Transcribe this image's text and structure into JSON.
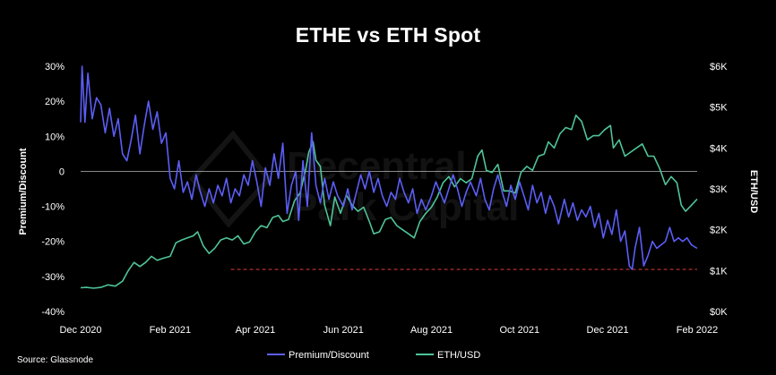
{
  "title": "ETHE vs ETH Spot",
  "source": "Source: Glassnode",
  "watermark": [
    "Decentral",
    "Park Capital"
  ],
  "colors": {
    "premium": "#5b5ef5",
    "eth": "#4fc497",
    "reference_line": "#e03a3a",
    "zero_line": "#ffffff",
    "background": "#000000"
  },
  "chart_data": {
    "type": "line",
    "title": "ETHE vs ETH Spot",
    "ylabel_left": "Premium/Discount",
    "ylabel_right": "ETH/USD",
    "x_ticks": [
      "Dec 2020",
      "Feb 2021",
      "Apr 2021",
      "Jun 2021",
      "Aug 2021",
      "Oct 2021",
      "Dec 2021",
      "Feb 2022"
    ],
    "xlim": [
      "2020-12-01",
      "2022-02-01"
    ],
    "ylim_left": [
      -40,
      30
    ],
    "ylim_right": [
      0,
      6000
    ],
    "y_ticks_left": [
      "30%",
      "20%",
      "10%",
      "0",
      "-10%",
      "-20%",
      "-30%",
      "-40%"
    ],
    "y_ticks_right": [
      "$6K",
      "$5K",
      "$4K",
      "$3K",
      "$2K",
      "$1K",
      "$0K"
    ],
    "reference_line": {
      "y_left": -28,
      "x_start": "2021-03-15",
      "x_end": "2022-02-01",
      "style": "dashed"
    },
    "legend": {
      "placement": "bottom-center",
      "entries": [
        "Premium/Discount",
        "ETH/USD"
      ]
    },
    "series": [
      {
        "name": "Premium/Discount",
        "axis": "left",
        "points": [
          [
            "2020-12-01",
            14
          ],
          [
            "2020-12-02",
            30
          ],
          [
            "2020-12-04",
            14
          ],
          [
            "2020-12-06",
            28
          ],
          [
            "2020-12-09",
            15
          ],
          [
            "2020-12-12",
            21
          ],
          [
            "2020-12-15",
            19
          ],
          [
            "2020-12-18",
            11
          ],
          [
            "2020-12-21",
            18
          ],
          [
            "2020-12-24",
            10
          ],
          [
            "2020-12-27",
            15
          ],
          [
            "2020-12-30",
            5
          ],
          [
            "2021-01-02",
            3
          ],
          [
            "2021-01-05",
            9
          ],
          [
            "2021-01-08",
            16
          ],
          [
            "2021-01-11",
            5
          ],
          [
            "2021-01-14",
            13
          ],
          [
            "2021-01-17",
            20
          ],
          [
            "2021-01-20",
            12
          ],
          [
            "2021-01-23",
            17
          ],
          [
            "2021-01-26",
            8
          ],
          [
            "2021-01-29",
            11
          ],
          [
            "2021-02-01",
            -2
          ],
          [
            "2021-02-04",
            -5
          ],
          [
            "2021-02-07",
            3
          ],
          [
            "2021-02-10",
            -6
          ],
          [
            "2021-02-13",
            -3
          ],
          [
            "2021-02-16",
            -8
          ],
          [
            "2021-02-19",
            -1
          ],
          [
            "2021-02-22",
            -6
          ],
          [
            "2021-02-25",
            -10
          ],
          [
            "2021-02-28",
            -5
          ],
          [
            "2021-03-03",
            -9
          ],
          [
            "2021-03-06",
            -4
          ],
          [
            "2021-03-09",
            -7
          ],
          [
            "2021-03-12",
            -2
          ],
          [
            "2021-03-15",
            -9
          ],
          [
            "2021-03-18",
            -5
          ],
          [
            "2021-03-21",
            -7
          ],
          [
            "2021-03-24",
            -1
          ],
          [
            "2021-03-27",
            -4
          ],
          [
            "2021-03-30",
            3
          ],
          [
            "2021-04-02",
            -3
          ],
          [
            "2021-04-05",
            -10
          ],
          [
            "2021-04-08",
            1
          ],
          [
            "2021-04-11",
            -4
          ],
          [
            "2021-04-14",
            5
          ],
          [
            "2021-04-17",
            -2
          ],
          [
            "2021-04-20",
            8
          ],
          [
            "2021-04-23",
            -12
          ],
          [
            "2021-04-26",
            -4
          ],
          [
            "2021-04-29",
            0
          ],
          [
            "2021-05-01",
            -14
          ],
          [
            "2021-05-04",
            3
          ],
          [
            "2021-05-07",
            -10
          ],
          [
            "2021-05-10",
            11
          ],
          [
            "2021-05-13",
            -4
          ],
          [
            "2021-05-16",
            -9
          ],
          [
            "2021-05-19",
            -2
          ],
          [
            "2021-05-22",
            -8
          ],
          [
            "2021-05-25",
            -3
          ],
          [
            "2021-05-28",
            -7
          ],
          [
            "2021-06-01",
            -10
          ],
          [
            "2021-06-04",
            -5
          ],
          [
            "2021-06-07",
            -11
          ],
          [
            "2021-06-10",
            -6
          ],
          [
            "2021-06-13",
            -1
          ],
          [
            "2021-06-16",
            -5
          ],
          [
            "2021-06-19",
            0
          ],
          [
            "2021-06-22",
            -6
          ],
          [
            "2021-06-25",
            -2
          ],
          [
            "2021-06-28",
            -7
          ],
          [
            "2021-07-01",
            -10
          ],
          [
            "2021-07-04",
            -6
          ],
          [
            "2021-07-07",
            -8
          ],
          [
            "2021-07-10",
            -2
          ],
          [
            "2021-07-13",
            -6
          ],
          [
            "2021-07-16",
            -9
          ],
          [
            "2021-07-19",
            -5
          ],
          [
            "2021-07-22",
            -12
          ],
          [
            "2021-07-25",
            -8
          ],
          [
            "2021-07-28",
            -11
          ],
          [
            "2021-08-01",
            -7
          ],
          [
            "2021-08-04",
            -3
          ],
          [
            "2021-08-07",
            -6
          ],
          [
            "2021-08-10",
            -9
          ],
          [
            "2021-08-13",
            -5
          ],
          [
            "2021-08-16",
            -1
          ],
          [
            "2021-08-19",
            -5
          ],
          [
            "2021-08-22",
            -10
          ],
          [
            "2021-08-25",
            -6
          ],
          [
            "2021-08-28",
            -3
          ],
          [
            "2021-09-01",
            -7
          ],
          [
            "2021-09-04",
            -2
          ],
          [
            "2021-09-07",
            -8
          ],
          [
            "2021-09-10",
            -11
          ],
          [
            "2021-09-13",
            -5
          ],
          [
            "2021-09-16",
            -1
          ],
          [
            "2021-09-19",
            -6
          ],
          [
            "2021-09-22",
            -10
          ],
          [
            "2021-09-25",
            -4
          ],
          [
            "2021-09-28",
            -8
          ],
          [
            "2021-10-01",
            -3
          ],
          [
            "2021-10-04",
            -7
          ],
          [
            "2021-10-07",
            -11
          ],
          [
            "2021-10-10",
            -4
          ],
          [
            "2021-10-13",
            -9
          ],
          [
            "2021-10-16",
            -6
          ],
          [
            "2021-10-19",
            -12
          ],
          [
            "2021-10-22",
            -7
          ],
          [
            "2021-10-25",
            -10
          ],
          [
            "2021-10-28",
            -15
          ],
          [
            "2021-11-01",
            -8
          ],
          [
            "2021-11-04",
            -13
          ],
          [
            "2021-11-07",
            -9
          ],
          [
            "2021-11-10",
            -14
          ],
          [
            "2021-11-13",
            -11
          ],
          [
            "2021-11-16",
            -13
          ],
          [
            "2021-11-19",
            -10
          ],
          [
            "2021-11-22",
            -16
          ],
          [
            "2021-11-25",
            -12
          ],
          [
            "2021-11-28",
            -19
          ],
          [
            "2021-12-01",
            -14
          ],
          [
            "2021-12-04",
            -18
          ],
          [
            "2021-12-07",
            -11
          ],
          [
            "2021-12-10",
            -20
          ],
          [
            "2021-12-13",
            -17
          ],
          [
            "2021-12-16",
            -27
          ],
          [
            "2021-12-18",
            -28
          ],
          [
            "2021-12-20",
            -22
          ],
          [
            "2021-12-23",
            -16
          ],
          [
            "2021-12-26",
            -27
          ],
          [
            "2021-12-29",
            -24
          ],
          [
            "2022-01-01",
            -20
          ],
          [
            "2022-01-04",
            -22
          ],
          [
            "2022-01-07",
            -21
          ],
          [
            "2022-01-10",
            -20
          ],
          [
            "2022-01-13",
            -16
          ],
          [
            "2022-01-16",
            -20
          ],
          [
            "2022-01-19",
            -19
          ],
          [
            "2022-01-22",
            -20
          ],
          [
            "2022-01-25",
            -19
          ],
          [
            "2022-01-28",
            -21
          ],
          [
            "2022-02-01",
            -22
          ]
        ]
      },
      {
        "name": "ETH/USD",
        "axis": "right",
        "points": [
          [
            "2020-12-01",
            580
          ],
          [
            "2020-12-05",
            590
          ],
          [
            "2020-12-10",
            570
          ],
          [
            "2020-12-15",
            590
          ],
          [
            "2020-12-20",
            650
          ],
          [
            "2020-12-25",
            620
          ],
          [
            "2020-12-30",
            740
          ],
          [
            "2021-01-03",
            1000
          ],
          [
            "2021-01-07",
            1200
          ],
          [
            "2021-01-11",
            1100
          ],
          [
            "2021-01-15",
            1200
          ],
          [
            "2021-01-19",
            1350
          ],
          [
            "2021-01-23",
            1250
          ],
          [
            "2021-01-27",
            1300
          ],
          [
            "2021-02-01",
            1350
          ],
          [
            "2021-02-05",
            1680
          ],
          [
            "2021-02-09",
            1750
          ],
          [
            "2021-02-13",
            1800
          ],
          [
            "2021-02-17",
            1850
          ],
          [
            "2021-02-20",
            1950
          ],
          [
            "2021-02-24",
            1600
          ],
          [
            "2021-02-28",
            1420
          ],
          [
            "2021-03-04",
            1550
          ],
          [
            "2021-03-08",
            1750
          ],
          [
            "2021-03-12",
            1800
          ],
          [
            "2021-03-16",
            1750
          ],
          [
            "2021-03-20",
            1850
          ],
          [
            "2021-03-24",
            1650
          ],
          [
            "2021-03-28",
            1700
          ],
          [
            "2021-04-01",
            1950
          ],
          [
            "2021-04-05",
            2100
          ],
          [
            "2021-04-09",
            2050
          ],
          [
            "2021-04-13",
            2300
          ],
          [
            "2021-04-17",
            2350
          ],
          [
            "2021-04-20",
            2200
          ],
          [
            "2021-04-24",
            2250
          ],
          [
            "2021-04-28",
            2700
          ],
          [
            "2021-05-02",
            2900
          ],
          [
            "2021-05-06",
            3500
          ],
          [
            "2021-05-08",
            3900
          ],
          [
            "2021-05-11",
            4150
          ],
          [
            "2021-05-13",
            3700
          ],
          [
            "2021-05-16",
            3550
          ],
          [
            "2021-05-19",
            2600
          ],
          [
            "2021-05-23",
            2100
          ],
          [
            "2021-05-26",
            2800
          ],
          [
            "2021-05-30",
            2400
          ],
          [
            "2021-06-03",
            2850
          ],
          [
            "2021-06-07",
            2600
          ],
          [
            "2021-06-11",
            2450
          ],
          [
            "2021-06-15",
            2550
          ],
          [
            "2021-06-19",
            2200
          ],
          [
            "2021-06-22",
            1900
          ],
          [
            "2021-06-26",
            1950
          ],
          [
            "2021-06-30",
            2250
          ],
          [
            "2021-07-04",
            2300
          ],
          [
            "2021-07-08",
            2100
          ],
          [
            "2021-07-12",
            2000
          ],
          [
            "2021-07-16",
            1900
          ],
          [
            "2021-07-20",
            1800
          ],
          [
            "2021-07-24",
            2200
          ],
          [
            "2021-07-28",
            2400
          ],
          [
            "2021-08-01",
            2550
          ],
          [
            "2021-08-05",
            2800
          ],
          [
            "2021-08-09",
            3150
          ],
          [
            "2021-08-13",
            3300
          ],
          [
            "2021-08-17",
            3050
          ],
          [
            "2021-08-21",
            3250
          ],
          [
            "2021-08-25",
            3150
          ],
          [
            "2021-08-29",
            3250
          ],
          [
            "2021-09-02",
            3800
          ],
          [
            "2021-09-05",
            3950
          ],
          [
            "2021-09-08",
            3450
          ],
          [
            "2021-09-12",
            3400
          ],
          [
            "2021-09-16",
            3600
          ],
          [
            "2021-09-20",
            2950
          ],
          [
            "2021-09-24",
            2950
          ],
          [
            "2021-09-28",
            2900
          ],
          [
            "2021-10-02",
            3400
          ],
          [
            "2021-10-06",
            3550
          ],
          [
            "2021-10-10",
            3450
          ],
          [
            "2021-10-14",
            3800
          ],
          [
            "2021-10-18",
            3850
          ],
          [
            "2021-10-21",
            4150
          ],
          [
            "2021-10-25",
            4000
          ],
          [
            "2021-10-29",
            4350
          ],
          [
            "2021-11-02",
            4500
          ],
          [
            "2021-11-06",
            4450
          ],
          [
            "2021-11-09",
            4800
          ],
          [
            "2021-11-13",
            4650
          ],
          [
            "2021-11-17",
            4200
          ],
          [
            "2021-11-21",
            4300
          ],
          [
            "2021-11-25",
            4300
          ],
          [
            "2021-11-29",
            4450
          ],
          [
            "2021-12-03",
            4550
          ],
          [
            "2021-12-05",
            4000
          ],
          [
            "2021-12-09",
            4200
          ],
          [
            "2021-12-13",
            3800
          ],
          [
            "2021-12-17",
            3900
          ],
          [
            "2021-12-21",
            4000
          ],
          [
            "2021-12-25",
            4100
          ],
          [
            "2021-12-29",
            3800
          ],
          [
            "2022-01-02",
            3800
          ],
          [
            "2022-01-06",
            3500
          ],
          [
            "2022-01-10",
            3100
          ],
          [
            "2022-01-14",
            3300
          ],
          [
            "2022-01-18",
            3150
          ],
          [
            "2022-01-21",
            2600
          ],
          [
            "2022-01-24",
            2450
          ],
          [
            "2022-01-28",
            2600
          ],
          [
            "2022-02-01",
            2750
          ]
        ]
      }
    ]
  }
}
